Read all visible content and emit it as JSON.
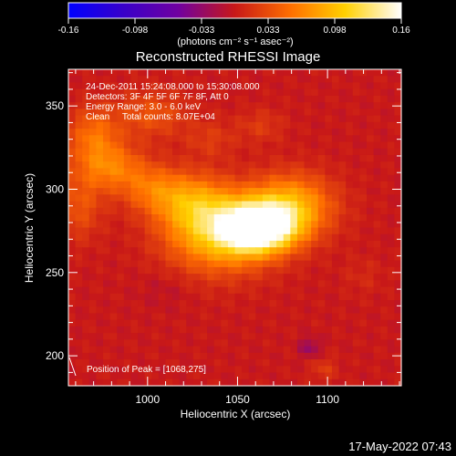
{
  "chart_data": {
    "type": "heatmap",
    "title": "Reconstructed RHESSI Image",
    "xlabel": "Heliocentric X (arcsec)",
    "ylabel": "Heliocentric Y (arcsec)",
    "xlim": [
      956,
      1141
    ],
    "ylim": [
      182,
      372
    ],
    "xticks": [
      1000,
      1050,
      1100
    ],
    "yticks": [
      200,
      250,
      300,
      350
    ],
    "colorbar": {
      "min": -0.16,
      "max": 0.16,
      "ticks": [
        "-0.16",
        "-0.098",
        "-0.033",
        "0.033",
        "0.098",
        "0.16"
      ],
      "unit_label": "(photons cm⁻² s⁻¹ asec⁻²)",
      "colors": [
        "#0000ff",
        "#3a00c8",
        "#7000a0",
        "#c81818",
        "#ff7000",
        "#ffd000",
        "#ffffff"
      ]
    },
    "annotations": [
      "24-Dec-2011 15:24:08.000 to 15:30:08.000",
      "Detectors: 3F 4F 5F 6F 7F 8F, Att 0",
      "Energy Range: 3.0 - 6.0 keV",
      "Clean     Total counts: 8.07E+04"
    ],
    "peak_label": "Position of Peak = [1068,275]",
    "peak": [
      1068,
      275
    ],
    "background_value": 0.0,
    "sources": [
      {
        "x": 1062,
        "y": 277,
        "sx": 14,
        "sy": 10,
        "amp": 0.175
      },
      {
        "x": 1040,
        "y": 274,
        "sx": 20,
        "sy": 16,
        "amp": 0.1
      },
      {
        "x": 1080,
        "y": 290,
        "sx": 16,
        "sy": 13,
        "amp": 0.085
      },
      {
        "x": 1025,
        "y": 292,
        "sx": 14,
        "sy": 12,
        "amp": 0.06
      },
      {
        "x": 1003,
        "y": 300,
        "sx": 12,
        "sy": 10,
        "amp": 0.045
      },
      {
        "x": 980,
        "y": 313,
        "sx": 13,
        "sy": 10,
        "amp": 0.055
      },
      {
        "x": 970,
        "y": 332,
        "sx": 10,
        "sy": 12,
        "amp": 0.05
      },
      {
        "x": 962,
        "y": 290,
        "sx": 9,
        "sy": 14,
        "amp": 0.035
      },
      {
        "x": 1002,
        "y": 345,
        "sx": 14,
        "sy": 10,
        "amp": 0.035
      },
      {
        "x": 1063,
        "y": 338,
        "sx": 9,
        "sy": 7,
        "amp": 0.02
      },
      {
        "x": 1035,
        "y": 330,
        "sx": 10,
        "sy": 8,
        "amp": 0.02
      },
      {
        "x": 1120,
        "y": 248,
        "sx": 8,
        "sy": 8,
        "amp": 0.01
      },
      {
        "x": 1098,
        "y": 192,
        "sx": 5,
        "sy": 5,
        "amp": 0.02
      },
      {
        "x": 1090,
        "y": 205,
        "sx": 4,
        "sy": 4,
        "amp": -0.03
      },
      {
        "x": 1010,
        "y": 240,
        "sx": 10,
        "sy": 8,
        "amp": -0.008
      }
    ]
  },
  "footer": {
    "timestamp": "17-May-2022 07:43"
  }
}
